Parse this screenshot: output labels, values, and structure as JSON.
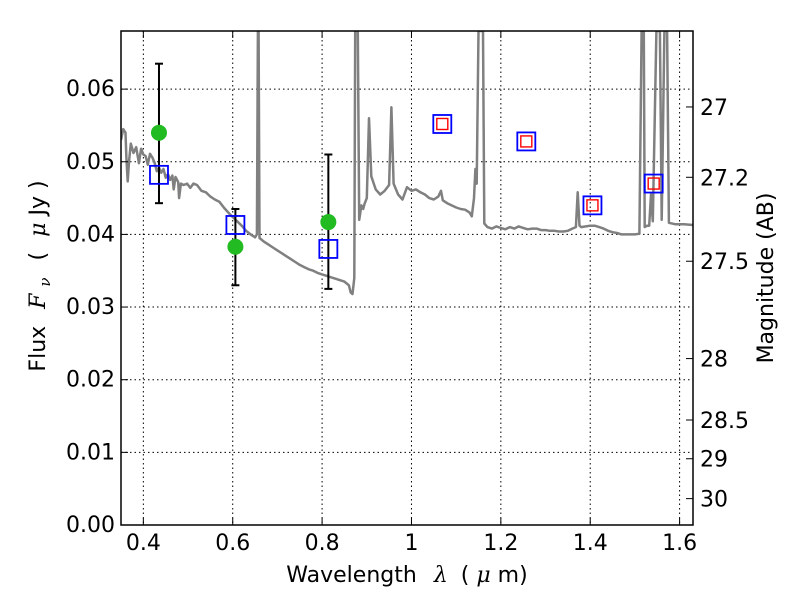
{
  "chart_data": {
    "type": "scatter",
    "xlabel": "Wavelength",
    "xlabel_symbol": "λ",
    "xlabel_unit_open": "(",
    "xlabel_unit_mu": "μ",
    "xlabel_unit_rest": "m)",
    "ylabel": "Flux",
    "ylabel_symbol": "F",
    "ylabel_sub": "ν",
    "ylabel_unit_open": "(",
    "ylabel_unit_mu": "μ",
    "ylabel_unit_rest": "Jy )",
    "y2label": "Magnitude (AB)",
    "xlim": [
      0.35,
      1.63
    ],
    "ylim": [
      0.0,
      0.068
    ],
    "grid": true,
    "x_ticks": [
      0.4,
      0.6,
      0.8,
      1.0,
      1.2,
      1.4,
      1.6
    ],
    "x_tick_labels": [
      "0.4",
      "0.6",
      "0.8",
      "1",
      "1.2",
      "1.4",
      "1.6"
    ],
    "y_ticks": [
      0.0,
      0.01,
      0.02,
      0.03,
      0.04,
      0.05,
      0.06
    ],
    "y_tick_labels": [
      "0.00",
      "0.01",
      "0.02",
      "0.03",
      "0.04",
      "0.05",
      "0.06"
    ],
    "y2_ticks": [
      27,
      27.2,
      27.5,
      28,
      28.5,
      29,
      30
    ],
    "y2_tick_labels": [
      "27",
      "27.2",
      "27.5",
      "28",
      "28.5",
      "29",
      "30"
    ],
    "observed_points": [
      {
        "x": 0.435,
        "y": 0.054,
        "err_low": 0.0443,
        "err_high": 0.0635
      },
      {
        "x": 0.606,
        "y": 0.0383,
        "err_low": 0.033,
        "err_high": 0.0435
      },
      {
        "x": 0.814,
        "y": 0.0417,
        "err_low": 0.0325,
        "err_high": 0.051
      }
    ],
    "model_band_fluxes": [
      {
        "x": 0.435,
        "y": 0.0482
      },
      {
        "x": 0.606,
        "y": 0.0413
      },
      {
        "x": 0.814,
        "y": 0.038
      },
      {
        "x": 1.069,
        "y": 0.0552
      },
      {
        "x": 1.257,
        "y": 0.0528
      },
      {
        "x": 1.405,
        "y": 0.044
      },
      {
        "x": 1.542,
        "y": 0.047
      }
    ],
    "predicted_points": [
      {
        "x": 1.069,
        "y": 0.0552
      },
      {
        "x": 1.257,
        "y": 0.0528
      },
      {
        "x": 1.405,
        "y": 0.044
      },
      {
        "x": 1.542,
        "y": 0.047
      }
    ],
    "sed_curve": [
      [
        0.35,
        0.053
      ],
      [
        0.355,
        0.0545
      ],
      [
        0.36,
        0.054
      ],
      [
        0.362,
        0.0505
      ],
      [
        0.365,
        0.0473
      ],
      [
        0.368,
        0.05
      ],
      [
        0.372,
        0.0525
      ],
      [
        0.378,
        0.0512
      ],
      [
        0.384,
        0.052
      ],
      [
        0.39,
        0.0498
      ],
      [
        0.395,
        0.0518
      ],
      [
        0.4,
        0.051
      ],
      [
        0.405,
        0.0508
      ],
      [
        0.41,
        0.0496
      ],
      [
        0.415,
        0.0511
      ],
      [
        0.42,
        0.0506
      ],
      [
        0.425,
        0.0499
      ],
      [
        0.43,
        0.0487
      ],
      [
        0.435,
        0.0492
      ],
      [
        0.44,
        0.0485
      ],
      [
        0.445,
        0.049
      ],
      [
        0.45,
        0.0478
      ],
      [
        0.455,
        0.0483
      ],
      [
        0.46,
        0.0475
      ],
      [
        0.465,
        0.0481
      ],
      [
        0.468,
        0.0462
      ],
      [
        0.472,
        0.0479
      ],
      [
        0.478,
        0.0472
      ],
      [
        0.48,
        0.045
      ],
      [
        0.484,
        0.047
      ],
      [
        0.49,
        0.0468
      ],
      [
        0.498,
        0.047
      ],
      [
        0.505,
        0.0464
      ],
      [
        0.512,
        0.047
      ],
      [
        0.52,
        0.0468
      ],
      [
        0.53,
        0.046
      ],
      [
        0.54,
        0.0458
      ],
      [
        0.55,
        0.0452
      ],
      [
        0.56,
        0.0448
      ],
      [
        0.57,
        0.0445
      ],
      [
        0.58,
        0.0437
      ],
      [
        0.59,
        0.043
      ],
      [
        0.6,
        0.0424
      ],
      [
        0.61,
        0.0418
      ],
      [
        0.62,
        0.0412
      ],
      [
        0.63,
        0.0405
      ],
      [
        0.64,
        0.04
      ],
      [
        0.65,
        0.0396
      ],
      [
        0.654,
        0.04
      ],
      [
        0.6563,
        0.068
      ],
      [
        0.658,
        0.068
      ],
      [
        0.66,
        0.0395
      ],
      [
        0.67,
        0.039
      ],
      [
        0.68,
        0.0386
      ],
      [
        0.69,
        0.0382
      ],
      [
        0.7,
        0.0378
      ],
      [
        0.71,
        0.0374
      ],
      [
        0.72,
        0.037
      ],
      [
        0.73,
        0.0366
      ],
      [
        0.74,
        0.0362
      ],
      [
        0.75,
        0.0358
      ],
      [
        0.76,
        0.0355
      ],
      [
        0.77,
        0.0352
      ],
      [
        0.78,
        0.035
      ],
      [
        0.79,
        0.0347
      ],
      [
        0.8,
        0.0345
      ],
      [
        0.81,
        0.0343
      ],
      [
        0.82,
        0.0341
      ],
      [
        0.83,
        0.0339
      ],
      [
        0.84,
        0.0337
      ],
      [
        0.85,
        0.0335
      ],
      [
        0.86,
        0.033
      ],
      [
        0.864,
        0.032
      ],
      [
        0.868,
        0.0318
      ],
      [
        0.872,
        0.034
      ],
      [
        0.874,
        0.068
      ],
      [
        0.88,
        0.068
      ],
      [
        0.883,
        0.042
      ],
      [
        0.888,
        0.044
      ],
      [
        0.892,
        0.0435
      ],
      [
        0.895,
        0.0442
      ],
      [
        0.9,
        0.045
      ],
      [
        0.905,
        0.056
      ],
      [
        0.91,
        0.048
      ],
      [
        0.92,
        0.0462
      ],
      [
        0.93,
        0.0455
      ],
      [
        0.94,
        0.046
      ],
      [
        0.95,
        0.0468
      ],
      [
        0.955,
        0.0575
      ],
      [
        0.96,
        0.047
      ],
      [
        0.97,
        0.0455
      ],
      [
        0.98,
        0.0448
      ],
      [
        0.99,
        0.0465
      ],
      [
        1.0,
        0.046
      ],
      [
        1.01,
        0.0462
      ],
      [
        1.02,
        0.0458
      ],
      [
        1.03,
        0.0455
      ],
      [
        1.04,
        0.045
      ],
      [
        1.05,
        0.0448
      ],
      [
        1.06,
        0.0452
      ],
      [
        1.066,
        0.046
      ],
      [
        1.07,
        0.0447
      ],
      [
        1.08,
        0.0443
      ],
      [
        1.09,
        0.044
      ],
      [
        1.1,
        0.0437
      ],
      [
        1.11,
        0.0435
      ],
      [
        1.12,
        0.0434
      ],
      [
        1.13,
        0.043
      ],
      [
        1.135,
        0.0425
      ],
      [
        1.14,
        0.045
      ],
      [
        1.143,
        0.049
      ],
      [
        1.146,
        0.047
      ],
      [
        1.15,
        0.068
      ],
      [
        1.16,
        0.068
      ],
      [
        1.163,
        0.0415
      ],
      [
        1.17,
        0.041
      ],
      [
        1.18,
        0.0408
      ],
      [
        1.19,
        0.0411
      ],
      [
        1.2,
        0.0409
      ],
      [
        1.21,
        0.0407
      ],
      [
        1.22,
        0.041
      ],
      [
        1.23,
        0.0408
      ],
      [
        1.24,
        0.0411
      ],
      [
        1.25,
        0.0409
      ],
      [
        1.26,
        0.0407
      ],
      [
        1.27,
        0.0408
      ],
      [
        1.28,
        0.0408
      ],
      [
        1.29,
        0.0406
      ],
      [
        1.3,
        0.0406
      ],
      [
        1.31,
        0.0405
      ],
      [
        1.32,
        0.0405
      ],
      [
        1.33,
        0.0404
      ],
      [
        1.34,
        0.0404
      ],
      [
        1.35,
        0.0405
      ],
      [
        1.36,
        0.0408
      ],
      [
        1.368,
        0.041
      ],
      [
        1.372,
        0.0458
      ],
      [
        1.376,
        0.0412
      ],
      [
        1.38,
        0.041
      ],
      [
        1.39,
        0.0411
      ],
      [
        1.4,
        0.0412
      ],
      [
        1.41,
        0.0412
      ],
      [
        1.42,
        0.041
      ],
      [
        1.43,
        0.0408
      ],
      [
        1.44,
        0.0405
      ],
      [
        1.45,
        0.0403
      ],
      [
        1.46,
        0.0402
      ],
      [
        1.47,
        0.04
      ],
      [
        1.48,
        0.04
      ],
      [
        1.49,
        0.04
      ],
      [
        1.5,
        0.04
      ],
      [
        1.51,
        0.0401
      ],
      [
        1.515,
        0.068
      ],
      [
        1.52,
        0.068
      ],
      [
        1.522,
        0.041
      ],
      [
        1.527,
        0.0412
      ],
      [
        1.532,
        0.0412
      ],
      [
        1.536,
        0.0455
      ],
      [
        1.54,
        0.0418
      ],
      [
        1.548,
        0.068
      ],
      [
        1.556,
        0.068
      ],
      [
        1.56,
        0.042
      ],
      [
        1.566,
        0.068
      ],
      [
        1.572,
        0.068
      ],
      [
        1.576,
        0.0416
      ],
      [
        1.59,
        0.0414
      ],
      [
        1.61,
        0.0414
      ],
      [
        1.63,
        0.0413
      ]
    ],
    "colors": {
      "curve": "#808080",
      "observed": "#22bb22",
      "model_square": "#0000ff",
      "predicted_square": "#ff0000",
      "errorbar": "#000000",
      "grid": "#000000"
    }
  }
}
